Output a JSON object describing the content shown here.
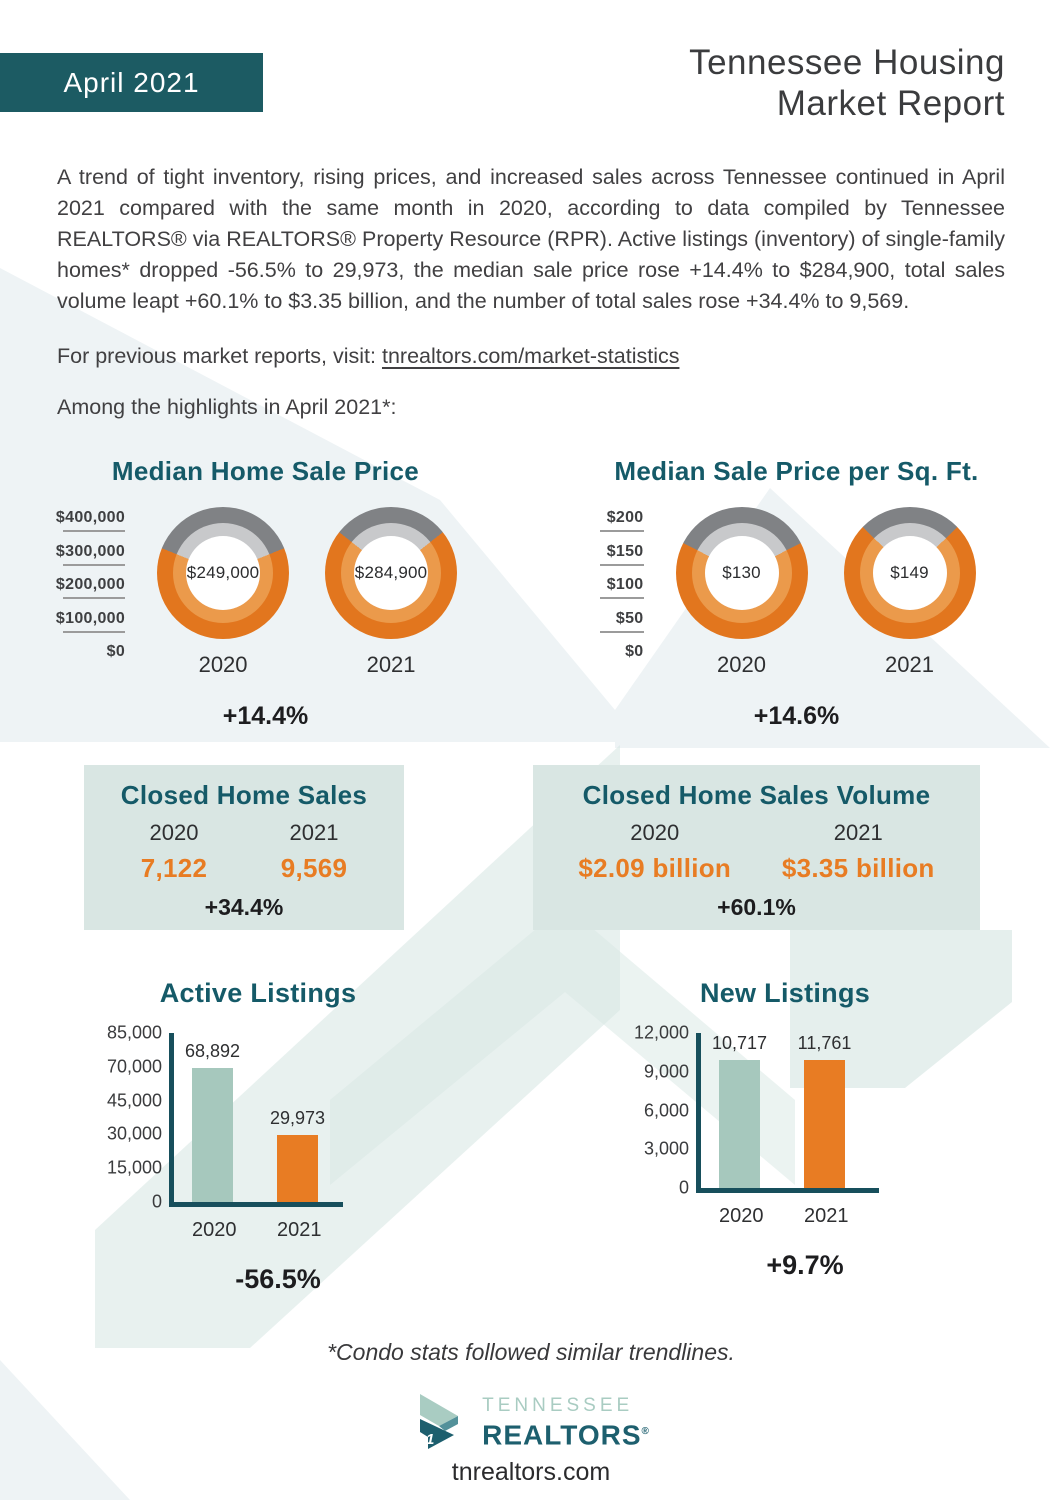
{
  "header": {
    "badge": "April 2021",
    "title_line1": "Tennessee Housing",
    "title_line2": "Market Report"
  },
  "intro": "A trend of tight inventory, rising prices, and increased sales across Tennessee continued in April 2021 compared with the same month in 2020, according to data compiled by Tennessee REALTORS® via REALTORS® Property Resource (RPR). Active listings (inventory) of single-family homes* dropped -56.5% to 29,973, the median sale price rose +14.4% to $284,900, total sales volume leapt +60.1% to $3.35 billion, and the number of total sales rose +34.4% to 9,569.",
  "visit": {
    "prefix": "For previous market reports, visit: ",
    "link": "tnrealtors.com/market-statistics"
  },
  "highlights": "Among the highlights in April 2021*:",
  "footnote": "*Condo stats followed similar trendlines.",
  "logo": {
    "line1": "TENNESSEE",
    "line2": "REALTORS",
    "registered": "®",
    "website": "tnrealtors.com"
  },
  "colors": {
    "badge_teal": "#1c5b63",
    "heading_teal": "#155a68",
    "axis_teal": "#174f5c",
    "orange": "#e87c23",
    "orange_ring_outer": "#e2761e",
    "orange_ring_inner": "#eb9a4b",
    "gray_ring_outer": "#808285",
    "gray_ring_inner": "#c8c9cb",
    "sage_bar": "#a6c8bd",
    "box_bg": "#d9e6e3"
  },
  "chart_data": [
    {
      "id": "median_home_sale_price",
      "type": "donut-pair",
      "title": "Median Home Sale Price",
      "axis_labels": [
        "$400,000",
        "$300,000",
        "$200,000",
        "$100,000",
        "$0"
      ],
      "max": 400000,
      "items": [
        {
          "year": "2020",
          "value": 249000,
          "label": "$249,000"
        },
        {
          "year": "2021",
          "value": 284900,
          "label": "$284,900"
        }
      ],
      "change": "+14.4%"
    },
    {
      "id": "median_sale_price_per_sq_ft",
      "type": "donut-pair",
      "title": "Median Sale Price per Sq. Ft.",
      "axis_labels": [
        "$200",
        "$150",
        "$100",
        "$50",
        "$0"
      ],
      "max": 200,
      "items": [
        {
          "year": "2020",
          "value": 130,
          "label": "$130"
        },
        {
          "year": "2021",
          "value": 149,
          "label": "$149"
        }
      ],
      "change": "+14.6%"
    },
    {
      "id": "closed_home_sales",
      "type": "stat-box",
      "title": "Closed Home Sales",
      "items": [
        {
          "year": "2020",
          "label": "7,122"
        },
        {
          "year": "2021",
          "label": "9,569"
        }
      ],
      "change": "+34.4%"
    },
    {
      "id": "closed_home_sales_volume",
      "type": "stat-box",
      "title": "Closed Home Sales Volume",
      "items": [
        {
          "year": "2020",
          "label": "$2.09 billion"
        },
        {
          "year": "2021",
          "label": "$3.35 billion"
        }
      ],
      "change": "+60.1%"
    },
    {
      "id": "active_listings",
      "type": "bar",
      "title": "Active Listings",
      "tick_labels": [
        "85,000",
        "70,000",
        "45,000",
        "30,000",
        "15,000",
        "0"
      ],
      "tick_values": [
        85000,
        70000,
        45000,
        30000,
        15000,
        0
      ],
      "categories": [
        "2020",
        "2021"
      ],
      "values": [
        68892,
        29973
      ],
      "value_labels": [
        "68,892",
        "29,973"
      ],
      "bar_color_keys": [
        "sage_bar",
        "orange"
      ],
      "change": "-56.5%"
    },
    {
      "id": "new_listings",
      "type": "bar",
      "title": "New Listings",
      "tick_labels": [
        "12,000",
        "9,000",
        "6,000",
        "3,000",
        "0"
      ],
      "tick_values": [
        12000,
        9000,
        6000,
        3000,
        0
      ],
      "categories": [
        "2020",
        "2021"
      ],
      "values": [
        10717,
        11761
      ],
      "value_labels": [
        "10,717",
        "11,761"
      ],
      "bar_color_keys": [
        "sage_bar",
        "orange"
      ],
      "change": "+9.7%"
    }
  ]
}
